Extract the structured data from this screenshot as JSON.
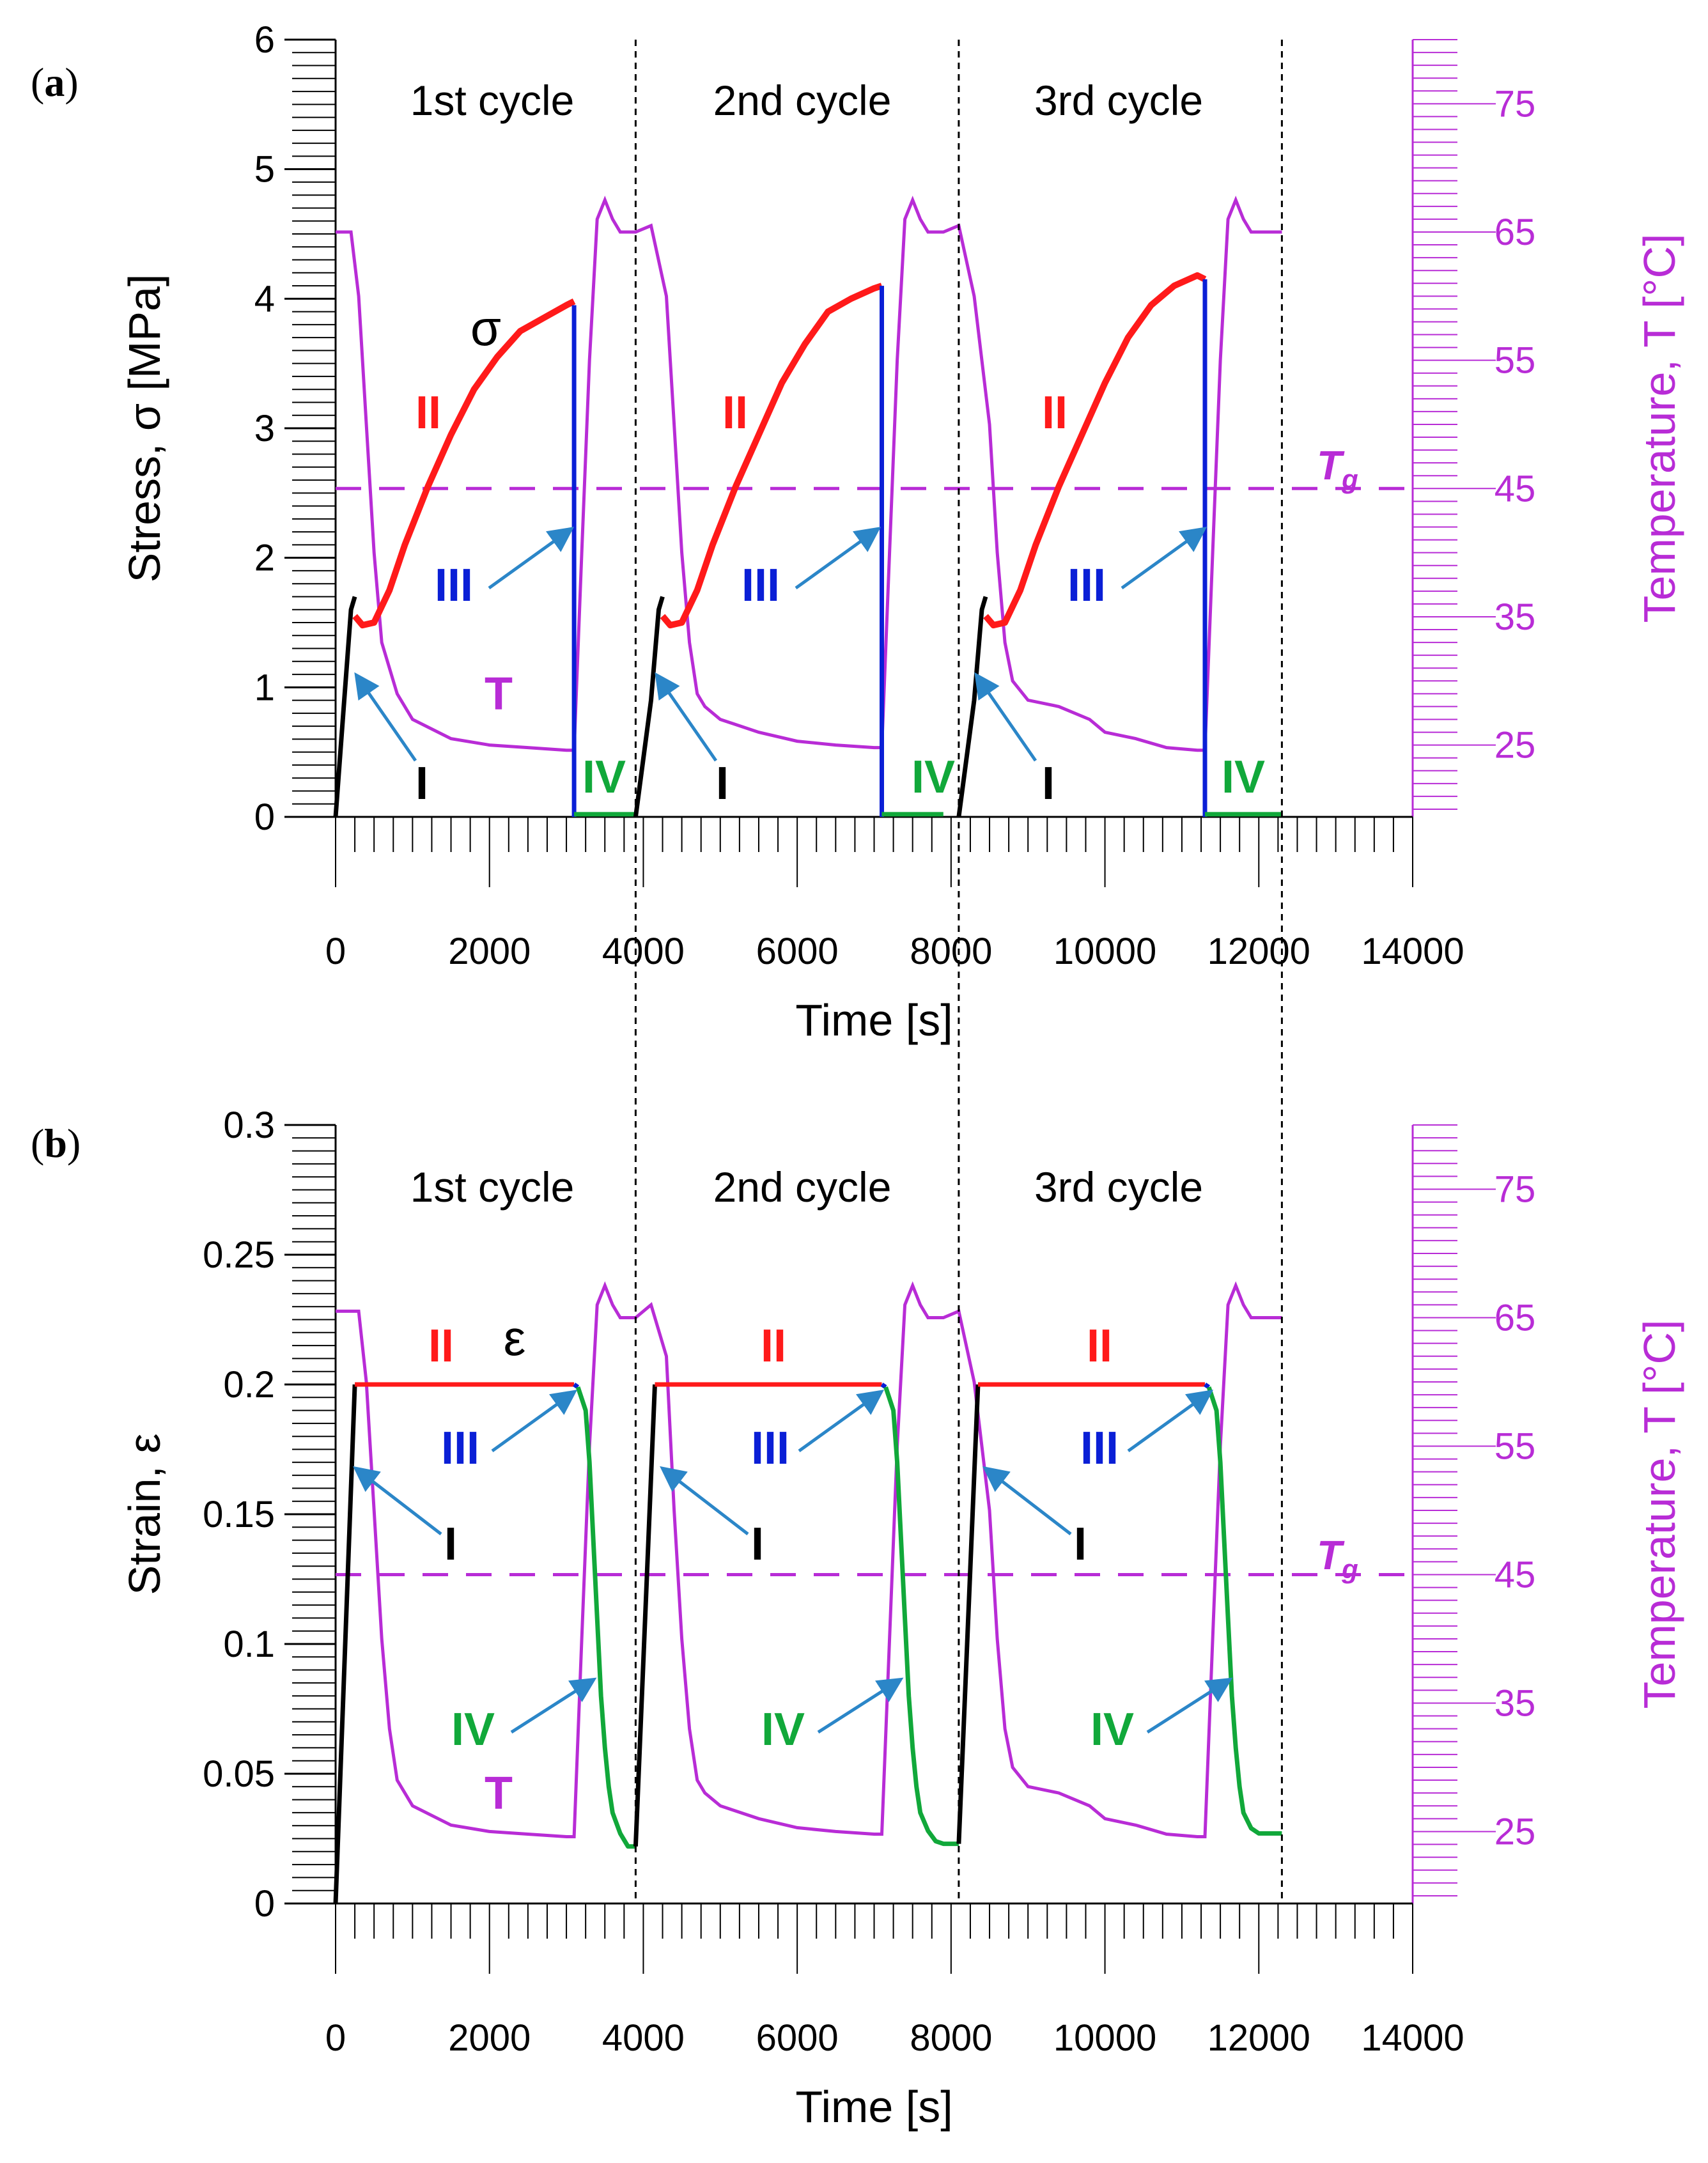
{
  "colors": {
    "temperature": "#b82cd6",
    "phase_I": "#000000",
    "phase_II": "#ff1a1a",
    "phase_III": "#0a1fd6",
    "phase_IV": "#11a83a",
    "arrow": "#2b86c8",
    "axis": "#000000"
  },
  "figure": {
    "letter_a": "a",
    "letter_b": "b",
    "paren_open": "(",
    "paren_close": ")",
    "cycle_labels": [
      "1st cycle",
      "2nd cycle",
      "3rd cycle"
    ],
    "cycle_boundaries_s": [
      3900,
      8100,
      12300
    ],
    "Tg_label": "T",
    "Tg_subscript": "g",
    "Tg_value_C": 45
  },
  "chart_data": [
    {
      "id": "a",
      "type": "line",
      "title": "(a)",
      "xlabel": "Time  [s]",
      "ylabel": "Stress, σ  [MPa]",
      "y2label": "Temperature, T  [°C]",
      "xlim": [
        0,
        14000
      ],
      "ylim": [
        0,
        6
      ],
      "y2lim": [
        19.4,
        80
      ],
      "xticks": [
        0,
        2000,
        4000,
        6000,
        8000,
        10000,
        12000,
        14000
      ],
      "yticks": [
        0,
        1,
        2,
        3,
        4,
        5,
        6
      ],
      "y2ticks": [
        25,
        35,
        45,
        55,
        65,
        75
      ],
      "curve_label": "σ",
      "temp_label": "T",
      "series": [
        {
          "name": "Stress, phase I",
          "phase": "I",
          "x": [
            0,
            100,
            200,
            250
          ],
          "y": [
            0,
            0.8,
            1.6,
            1.7
          ]
        },
        {
          "name": "Stress, phase II (cycle 1)",
          "phase": "II",
          "x": [
            250,
            350,
            500,
            700,
            900,
            1200,
            1500,
            1800,
            2100,
            2400,
            2700,
            3000,
            3100
          ],
          "y": [
            1.55,
            1.48,
            1.5,
            1.75,
            2.1,
            2.55,
            2.95,
            3.3,
            3.55,
            3.75,
            3.85,
            3.95,
            3.98
          ]
        },
        {
          "name": "Stress, phase II (cycle 2)",
          "phase": "II",
          "x": [
            4250,
            4350,
            4500,
            4700,
            4900,
            5200,
            5500,
            5800,
            6100,
            6400,
            6700,
            7000,
            7100
          ],
          "y": [
            1.55,
            1.48,
            1.5,
            1.75,
            2.1,
            2.55,
            2.95,
            3.35,
            3.65,
            3.9,
            4.0,
            4.08,
            4.1
          ]
        },
        {
          "name": "Stress, phase II (cycle 3)",
          "phase": "II",
          "x": [
            8450,
            8550,
            8700,
            8900,
            9100,
            9400,
            9700,
            10000,
            10300,
            10600,
            10900,
            11200,
            11300
          ],
          "y": [
            1.55,
            1.48,
            1.5,
            1.75,
            2.1,
            2.55,
            2.95,
            3.35,
            3.7,
            3.95,
            4.1,
            4.18,
            4.15
          ]
        },
        {
          "name": "Stress, phase III",
          "phase": "III",
          "x": [
            3100,
            3100
          ],
          "y": [
            3.95,
            0
          ]
        },
        {
          "name": "Stress, phase III (cycle 2)",
          "phase": "III",
          "x": [
            7100,
            7100
          ],
          "y": [
            4.1,
            0
          ]
        },
        {
          "name": "Stress, phase III (cycle 3)",
          "phase": "III",
          "x": [
            11300,
            11300
          ],
          "y": [
            4.15,
            0
          ]
        },
        {
          "name": "Stress, phase IV",
          "phase": "IV",
          "x": [
            3100,
            3900
          ],
          "y": [
            0.02,
            0.02
          ]
        },
        {
          "name": "Stress, phase IV (cycle 2)",
          "phase": "IV",
          "x": [
            7100,
            7900
          ],
          "y": [
            0.02,
            0.02
          ]
        },
        {
          "name": "Stress, phase IV (cycle 3)",
          "phase": "IV",
          "x": [
            11300,
            12300
          ],
          "y": [
            0.02,
            0.02
          ]
        },
        {
          "name": "Stress, phase I (cycle 2)",
          "phase": "I",
          "x": [
            3900,
            4100,
            4200,
            4250
          ],
          "y": [
            0,
            0.9,
            1.6,
            1.7
          ]
        },
        {
          "name": "Stress, phase I (cycle 3)",
          "phase": "I",
          "x": [
            8100,
            8300,
            8400,
            8450
          ],
          "y": [
            0,
            0.9,
            1.6,
            1.7
          ]
        }
      ],
      "temperature": {
        "name": "Temperature, T",
        "x": [
          0,
          200,
          300,
          400,
          500,
          600,
          800,
          1000,
          1500,
          2000,
          2500,
          3000,
          3100,
          3200,
          3300,
          3400,
          3500,
          3600,
          3700,
          3800,
          3900,
          4100,
          4300,
          4400,
          4500,
          4600,
          4700,
          4800,
          5000,
          5500,
          6000,
          6500,
          7000,
          7100,
          7200,
          7300,
          7400,
          7500,
          7600,
          7700,
          7800,
          7900,
          8100,
          8300,
          8500,
          8600,
          8700,
          8800,
          9000,
          9400,
          9800,
          10000,
          10400,
          10800,
          11200,
          11300,
          11400,
          11500,
          11600,
          11700,
          11800,
          11900,
          12000,
          12100,
          12200,
          12300
        ],
        "y": [
          65,
          65,
          60,
          50,
          40,
          33,
          29,
          27,
          25.5,
          25,
          24.8,
          24.6,
          24.6,
          40,
          55,
          66,
          67.5,
          66,
          65,
          65,
          65,
          65.5,
          60,
          50,
          40,
          33,
          29,
          28,
          27,
          26,
          25.3,
          25,
          24.8,
          24.8,
          40,
          55,
          66,
          67.5,
          66,
          65,
          65,
          65,
          65.5,
          60,
          50,
          40,
          33,
          30,
          28.5,
          28,
          27,
          26,
          25.5,
          24.8,
          24.6,
          24.6,
          40,
          55,
          66,
          67.5,
          66,
          65,
          65,
          65,
          65,
          65
        ]
      },
      "annotations": [
        "I",
        "II",
        "III",
        "IV",
        "T",
        "σ",
        "Tg"
      ]
    },
    {
      "id": "b",
      "type": "line",
      "title": "(b)",
      "xlabel": "Time  [s]",
      "ylabel": "Strain, ε",
      "y2label": "Temperature, T  [°C]",
      "xlim": [
        0,
        14000
      ],
      "ylim": [
        0,
        0.3
      ],
      "y2lim": [
        19.4,
        80
      ],
      "xticks": [
        0,
        2000,
        4000,
        6000,
        8000,
        10000,
        12000,
        14000
      ],
      "yticks": [
        0,
        0.05,
        0.1,
        0.15,
        0.2,
        0.25,
        0.3
      ],
      "y2ticks": [
        25,
        35,
        45,
        55,
        65,
        75
      ],
      "curve_label": "ε",
      "temp_label": "T",
      "series": [
        {
          "name": "Strain, phase I",
          "phase": "I",
          "x": [
            0,
            250
          ],
          "y": [
            0,
            0.2
          ]
        },
        {
          "name": "Strain, phase II (cycle 1)",
          "phase": "II",
          "x": [
            250,
            3100
          ],
          "y": [
            0.2,
            0.2
          ]
        },
        {
          "name": "Strain, phase III (cycle 1)",
          "phase": "III",
          "x": [
            3100,
            3150
          ],
          "y": [
            0.2,
            0.199
          ]
        },
        {
          "name": "Strain, phase IV (cycle 1)",
          "phase": "IV",
          "x": [
            3150,
            3250,
            3300,
            3350,
            3400,
            3450,
            3500,
            3550,
            3600,
            3700,
            3800,
            3900
          ],
          "y": [
            0.199,
            0.19,
            0.17,
            0.14,
            0.11,
            0.08,
            0.06,
            0.045,
            0.035,
            0.027,
            0.022,
            0.022
          ]
        },
        {
          "name": "Strain, phase I (cycle 2)",
          "phase": "I",
          "x": [
            3900,
            4150
          ],
          "y": [
            0.022,
            0.2
          ]
        },
        {
          "name": "Strain, phase II (cycle 2)",
          "phase": "II",
          "x": [
            4150,
            7100
          ],
          "y": [
            0.2,
            0.2
          ]
        },
        {
          "name": "Strain, phase III (cycle 2)",
          "phase": "III",
          "x": [
            7100,
            7150
          ],
          "y": [
            0.2,
            0.199
          ]
        },
        {
          "name": "Strain, phase IV (cycle 2)",
          "phase": "IV",
          "x": [
            7150,
            7250,
            7300,
            7350,
            7400,
            7450,
            7500,
            7550,
            7600,
            7700,
            7800,
            7900,
            8100
          ],
          "y": [
            0.199,
            0.19,
            0.17,
            0.14,
            0.11,
            0.08,
            0.06,
            0.045,
            0.035,
            0.028,
            0.024,
            0.023,
            0.023
          ]
        },
        {
          "name": "Strain, phase I (cycle 3)",
          "phase": "I",
          "x": [
            8100,
            8350
          ],
          "y": [
            0.023,
            0.2
          ]
        },
        {
          "name": "Strain, phase II (cycle 3)",
          "phase": "II",
          "x": [
            8350,
            11300
          ],
          "y": [
            0.2,
            0.2
          ]
        },
        {
          "name": "Strain, phase III (cycle 3)",
          "phase": "III",
          "x": [
            11300,
            11350
          ],
          "y": [
            0.2,
            0.199
          ]
        },
        {
          "name": "Strain, phase IV (cycle 3)",
          "phase": "IV",
          "x": [
            11350,
            11450,
            11500,
            11550,
            11600,
            11650,
            11700,
            11750,
            11800,
            11900,
            12000,
            12100,
            12300
          ],
          "y": [
            0.199,
            0.19,
            0.17,
            0.14,
            0.11,
            0.08,
            0.06,
            0.045,
            0.035,
            0.029,
            0.027,
            0.027,
            0.027
          ]
        }
      ],
      "temperature": {
        "name": "Temperature, T",
        "x": [
          0,
          300,
          400,
          500,
          600,
          700,
          800,
          1000,
          1500,
          2000,
          2500,
          3000,
          3100,
          3200,
          3300,
          3400,
          3500,
          3600,
          3700,
          3800,
          3900,
          4100,
          4300,
          4400,
          4500,
          4600,
          4700,
          4800,
          5000,
          5500,
          6000,
          6500,
          7000,
          7100,
          7200,
          7300,
          7400,
          7500,
          7600,
          7700,
          7800,
          7900,
          8100,
          8300,
          8500,
          8600,
          8700,
          8800,
          9000,
          9400,
          9800,
          10000,
          10400,
          10800,
          11200,
          11300,
          11400,
          11500,
          11600,
          11700,
          11800,
          11900,
          12000,
          12100,
          12200,
          12300
        ],
        "y": [
          65.5,
          65.5,
          60,
          50,
          40,
          33,
          29,
          27,
          25.5,
          25,
          24.8,
          24.6,
          24.6,
          40,
          55,
          66,
          67.5,
          66,
          65,
          65,
          65,
          66,
          62,
          50,
          40,
          33,
          29,
          28,
          27,
          26,
          25.3,
          25,
          24.8,
          24.8,
          40,
          55,
          66,
          67.5,
          66,
          65,
          65,
          65,
          65.5,
          60,
          50,
          40,
          33,
          30,
          28.5,
          28,
          27,
          26,
          25.5,
          24.8,
          24.6,
          24.6,
          40,
          55,
          66,
          67.5,
          66,
          65,
          65,
          65,
          65,
          65
        ]
      },
      "annotations": [
        "I",
        "II",
        "III",
        "IV",
        "T",
        "ε",
        "Tg"
      ]
    }
  ]
}
